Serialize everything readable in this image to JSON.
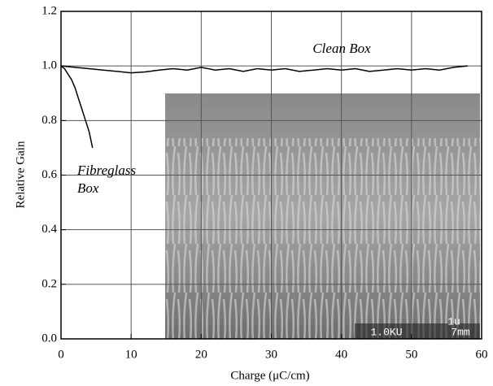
{
  "chart_data": {
    "type": "line",
    "x_label": "Charge (μC/cm)",
    "y_label": "Relative Gain",
    "xlim": [
      0,
      60
    ],
    "xticks": [
      0,
      10,
      20,
      30,
      40,
      50,
      60
    ],
    "ylim": [
      0,
      1.2
    ],
    "yticks": [
      {
        "value": 0,
        "label": "0.0"
      },
      0.2,
      0.4,
      0.6,
      0.8,
      {
        "value": 1,
        "label": "1.0"
      },
      1.2
    ],
    "grid": true,
    "series": [
      {
        "color": "#000000",
        "x": [
          0,
          2,
          4,
          6,
          8,
          10,
          12,
          14,
          16,
          18,
          20,
          22,
          24,
          26,
          28,
          30,
          32,
          34,
          36,
          38,
          40,
          42,
          44,
          46,
          48,
          50,
          52,
          54,
          56,
          58
        ],
        "values": [
          1.0,
          0.995,
          0.99,
          0.985,
          0.98,
          0.975,
          0.978,
          0.985,
          0.99,
          0.985,
          0.995,
          0.985,
          0.99,
          0.98,
          0.99,
          0.985,
          0.99,
          0.98,
          0.985,
          0.99,
          0.985,
          0.99,
          0.98,
          0.985,
          0.99,
          0.985,
          0.99,
          0.985,
          0.995,
          1.0
        ]
      },
      {
        "color": "#000000",
        "x": [
          0,
          0.5,
          1,
          1.5,
          2,
          2.5,
          3,
          3.5,
          4,
          4.5
        ],
        "values": [
          1.0,
          0.99,
          0.97,
          0.95,
          0.92,
          0.88,
          0.84,
          0.8,
          0.76,
          0.7
        ]
      }
    ],
    "annotations": [
      "Clean Box",
      "Fibreglass",
      "Box"
    ],
    "inset_labels": [
      "1u",
      "1.0KU",
      "7mm"
    ]
  }
}
